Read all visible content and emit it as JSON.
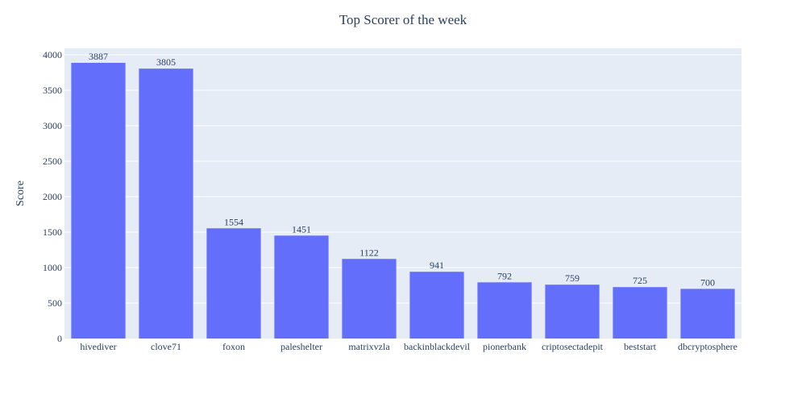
{
  "chart_data": {
    "type": "bar",
    "title": "Top Scorer of the week",
    "xlabel": "",
    "ylabel": "Score",
    "categories": [
      "hivediver",
      "clove71",
      "foxon",
      "paleshelter",
      "matrixvzla",
      "backinblackdevil",
      "pionerbank",
      "criptosectadepit",
      "beststart",
      "dbcryptosphere"
    ],
    "values": [
      3887,
      3805,
      1554,
      1451,
      1122,
      941,
      792,
      759,
      725,
      700
    ],
    "ylim": [
      0,
      4091
    ],
    "yticks": [
      0,
      500,
      1000,
      1500,
      2000,
      2500,
      3000,
      3500,
      4000
    ],
    "grid": true,
    "bar_color": "#636efa",
    "plot_background": "#e5ecf6",
    "gridline_color": "#ffffff",
    "text_color": "#2a3f5f",
    "show_data_labels": true
  }
}
